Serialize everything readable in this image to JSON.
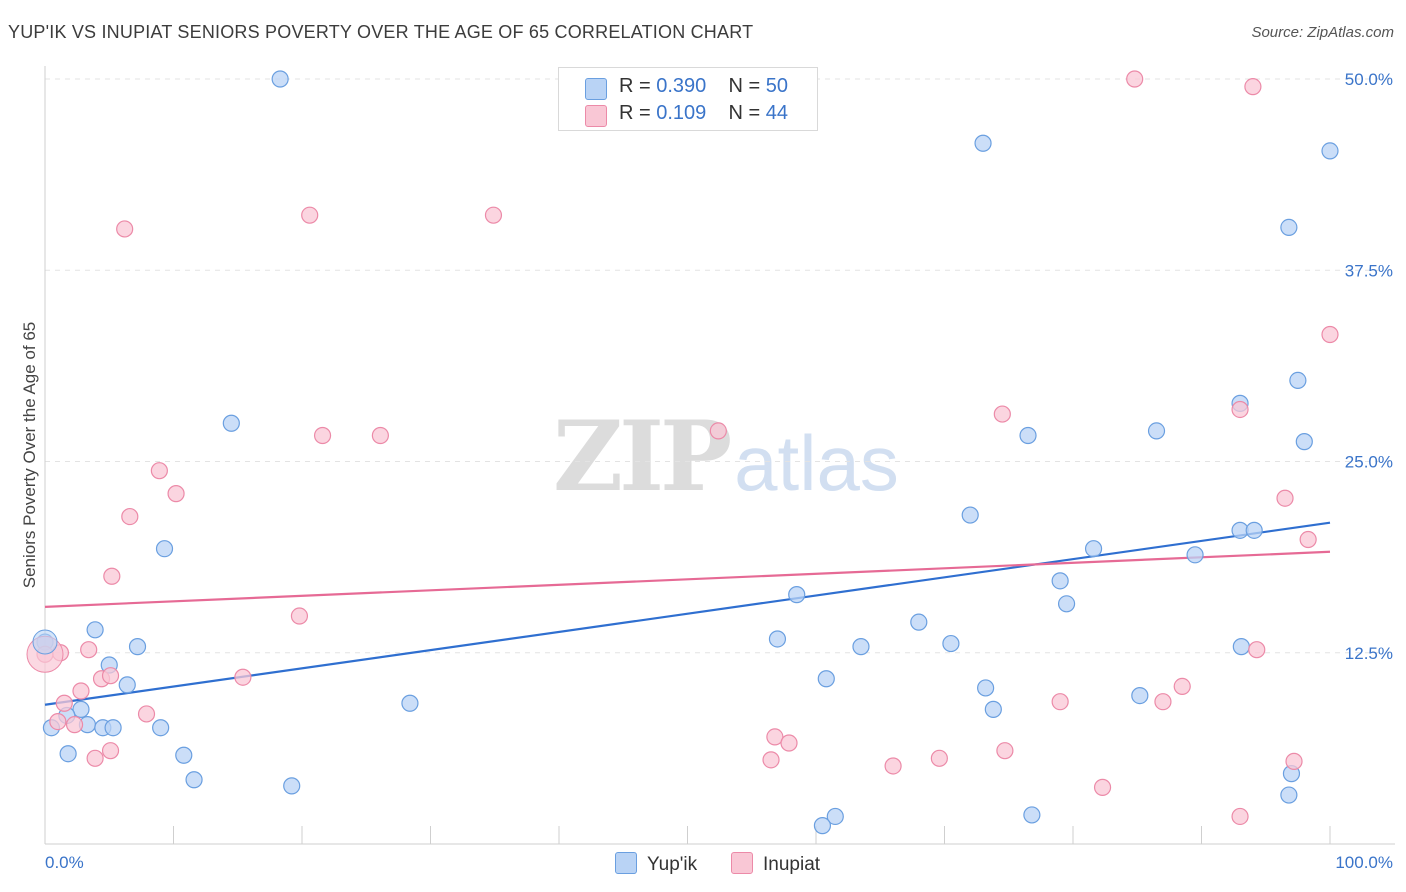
{
  "header": {
    "title": "YUP'IK VS INUPIAT SENIORS POVERTY OVER THE AGE OF 65 CORRELATION CHART",
    "source": "Source: ZipAtlas.com"
  },
  "watermark": {
    "zip": "ZIP",
    "atlas": "atlas"
  },
  "legend": {
    "items": [
      {
        "r_label": "R = ",
        "r_value": "0.390",
        "n_label": "N = ",
        "n_value": "50"
      },
      {
        "r_label": "R = ",
        "r_value": "0.109",
        "n_label": "N = ",
        "n_value": "44"
      }
    ]
  },
  "bottom_legend": {
    "series1": "Yup'ik",
    "series2": "Inupiat"
  },
  "colors": {
    "blue_fill": "#b9d3f5",
    "blue_stroke": "#6a9fe0",
    "blue_line": "#2f6fd0",
    "pink_fill": "#f9c7d5",
    "pink_stroke": "#ec8aa8",
    "pink_line": "#e66a95",
    "tick_text": "#3a74c9",
    "grid": "#e3e3e3"
  },
  "chart_data": {
    "type": "scatter",
    "title": "YUP'IK VS INUPIAT SENIORS POVERTY OVER THE AGE OF 65 CORRELATION CHART",
    "xlabel": "",
    "ylabel": "Seniors Poverty Over the Age of 65",
    "xlim": [
      0,
      100
    ],
    "ylim": [
      0,
      50
    ],
    "x_tick_labels": [
      "0.0%",
      "100.0%"
    ],
    "y_ticks": [
      12.5,
      25.0,
      37.5,
      50.0
    ],
    "y_tick_labels": [
      "12.5%",
      "25.0%",
      "37.5%",
      "50.0%"
    ],
    "series": [
      {
        "name": "Yup'ik",
        "r": 0.39,
        "n": 50,
        "trend": {
          "y_at_0": 9.1,
          "y_at_100": 21.0
        },
        "points": [
          [
            18.3,
            50.0
          ],
          [
            73.0,
            45.8
          ],
          [
            100.0,
            45.3
          ],
          [
            96.8,
            40.3
          ],
          [
            97.5,
            30.3
          ],
          [
            93.0,
            28.8
          ],
          [
            98.0,
            26.3
          ],
          [
            86.5,
            27.0
          ],
          [
            76.5,
            26.7
          ],
          [
            72.0,
            21.5
          ],
          [
            93.0,
            20.5
          ],
          [
            94.1,
            20.5
          ],
          [
            81.6,
            19.3
          ],
          [
            89.5,
            18.9
          ],
          [
            79.0,
            17.2
          ],
          [
            79.5,
            15.7
          ],
          [
            58.5,
            16.3
          ],
          [
            57.0,
            13.4
          ],
          [
            68.0,
            14.5
          ],
          [
            70.5,
            13.1
          ],
          [
            63.5,
            12.9
          ],
          [
            93.1,
            12.9
          ],
          [
            0.0,
            13.2
          ],
          [
            3.9,
            14.0
          ],
          [
            7.2,
            12.9
          ],
          [
            5.0,
            11.7
          ],
          [
            6.4,
            10.4
          ],
          [
            2.8,
            8.8
          ],
          [
            1.7,
            8.4
          ],
          [
            0.5,
            7.6
          ],
          [
            3.3,
            7.8
          ],
          [
            4.5,
            7.6
          ],
          [
            5.3,
            7.6
          ],
          [
            9.0,
            7.6
          ],
          [
            28.4,
            9.2
          ],
          [
            60.8,
            10.8
          ],
          [
            73.2,
            10.2
          ],
          [
            73.8,
            8.8
          ],
          [
            85.2,
            9.7
          ],
          [
            1.8,
            5.9
          ],
          [
            10.8,
            5.8
          ],
          [
            11.6,
            4.2
          ],
          [
            19.2,
            3.8
          ],
          [
            97.0,
            4.6
          ],
          [
            96.8,
            3.2
          ],
          [
            76.8,
            1.9
          ],
          [
            61.5,
            1.8
          ],
          [
            60.5,
            1.2
          ],
          [
            9.3,
            19.3
          ],
          [
            14.5,
            27.5
          ]
        ]
      },
      {
        "name": "Inupiat",
        "r": 0.109,
        "n": 44,
        "trend": {
          "y_at_0": 15.5,
          "y_at_100": 19.1
        },
        "points": [
          [
            84.8,
            50.0
          ],
          [
            94.0,
            49.5
          ],
          [
            6.2,
            40.2
          ],
          [
            20.6,
            41.1
          ],
          [
            34.9,
            41.1
          ],
          [
            100.0,
            33.3
          ],
          [
            93.0,
            28.4
          ],
          [
            74.5,
            28.1
          ],
          [
            21.6,
            26.7
          ],
          [
            26.1,
            26.7
          ],
          [
            52.4,
            27.0
          ],
          [
            8.9,
            24.4
          ],
          [
            10.2,
            22.9
          ],
          [
            96.5,
            22.6
          ],
          [
            6.6,
            21.4
          ],
          [
            98.3,
            19.9
          ],
          [
            5.2,
            17.5
          ],
          [
            19.8,
            14.9
          ],
          [
            3.4,
            12.7
          ],
          [
            94.3,
            12.7
          ],
          [
            1.2,
            12.5
          ],
          [
            4.4,
            10.8
          ],
          [
            5.1,
            11.0
          ],
          [
            15.4,
            10.9
          ],
          [
            2.8,
            10.0
          ],
          [
            1.5,
            9.2
          ],
          [
            79.0,
            9.3
          ],
          [
            87.0,
            9.3
          ],
          [
            88.5,
            10.3
          ],
          [
            1.0,
            8.0
          ],
          [
            2.3,
            7.8
          ],
          [
            7.9,
            8.5
          ],
          [
            56.8,
            7.0
          ],
          [
            57.9,
            6.6
          ],
          [
            5.1,
            6.1
          ],
          [
            3.9,
            5.6
          ],
          [
            56.5,
            5.5
          ],
          [
            69.6,
            5.6
          ],
          [
            74.7,
            6.1
          ],
          [
            66.0,
            5.1
          ],
          [
            97.2,
            5.4
          ],
          [
            82.3,
            3.7
          ],
          [
            93.0,
            1.8
          ],
          [
            0.0,
            12.4
          ]
        ]
      }
    ]
  }
}
